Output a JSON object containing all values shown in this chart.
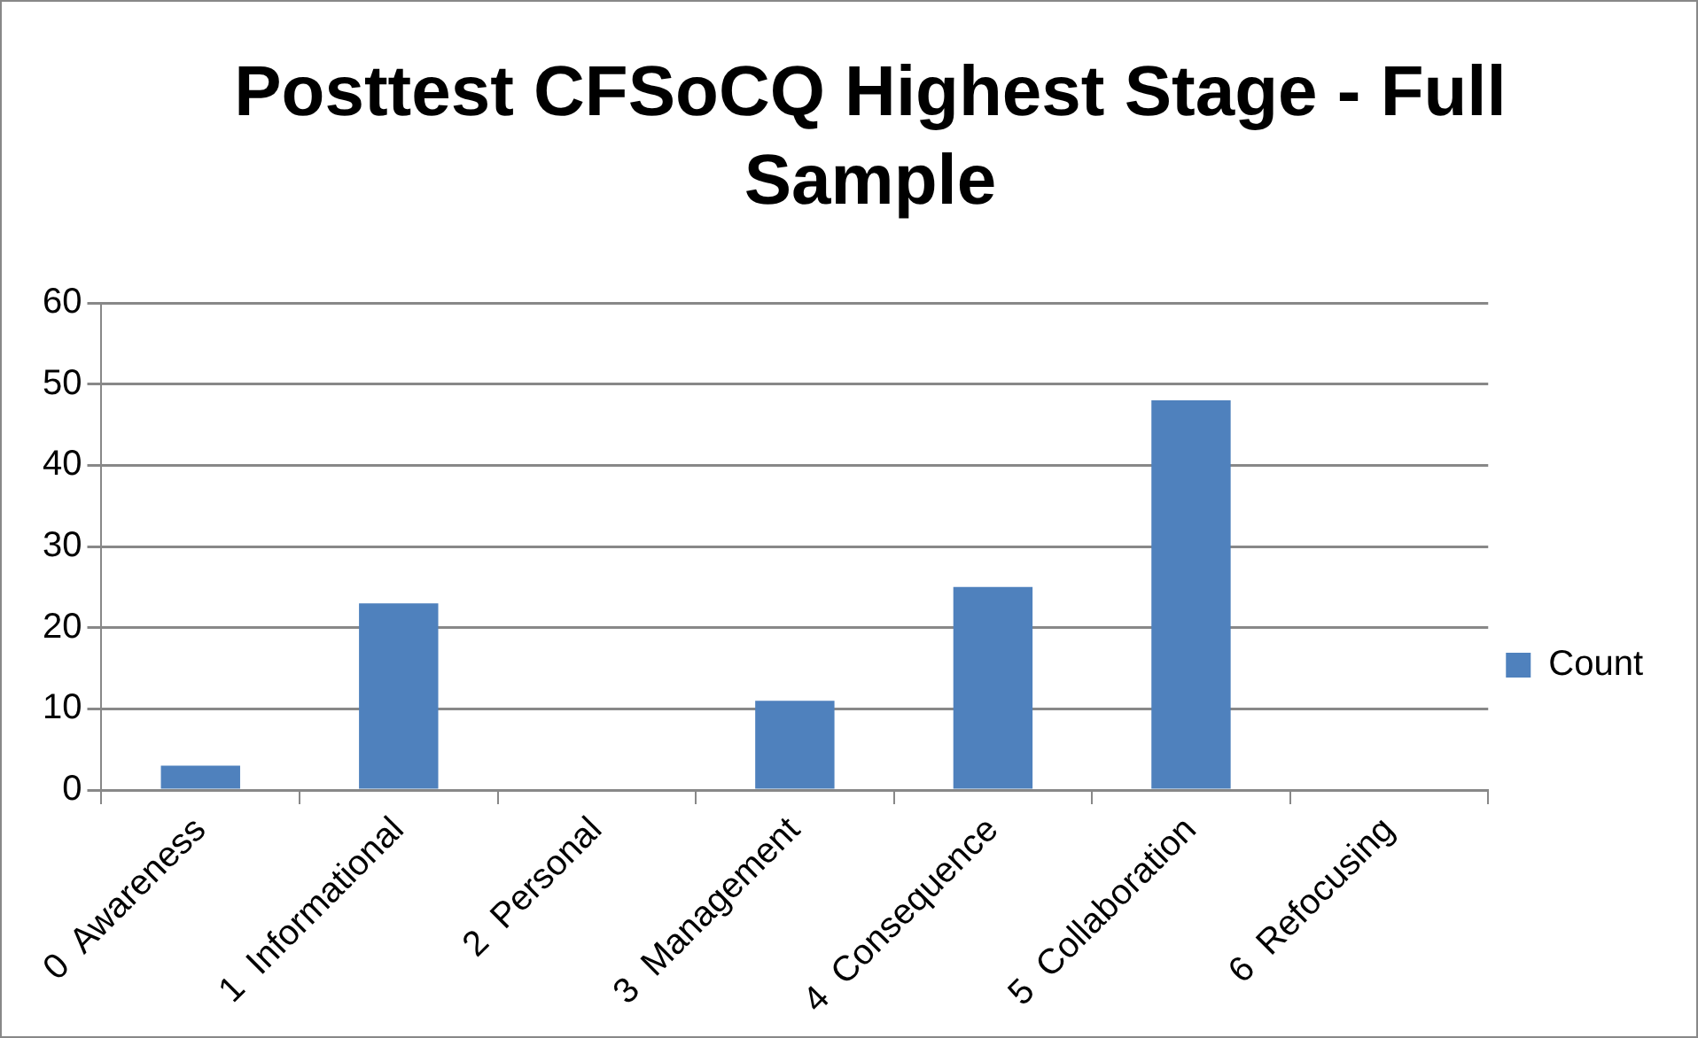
{
  "chart_data": {
    "type": "bar",
    "title": "Posttest CFSoCQ Highest Stage - Full Sample",
    "categories": [
      "0  Awareness",
      "1  Informational",
      "2  Personal",
      "3  Management",
      "4  Consequence",
      "5  Collaboration",
      "6  Refocusing"
    ],
    "series": [
      {
        "name": "Count",
        "color": "#4f81bd",
        "values": [
          3,
          23,
          0,
          11,
          25,
          48,
          0
        ]
      }
    ],
    "ylim": [
      0,
      60
    ],
    "yticks": [
      0,
      10,
      20,
      30,
      40,
      50,
      60
    ],
    "grid": "y",
    "legend": "right"
  }
}
